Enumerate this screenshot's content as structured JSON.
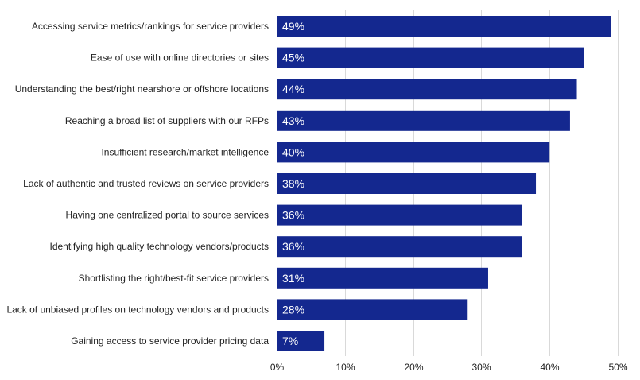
{
  "chart_data": {
    "type": "bar",
    "orientation": "horizontal",
    "title": "",
    "xlabel": "",
    "ylabel": "",
    "categories": [
      "Accessing service metrics/rankings for service providers",
      "Ease of use with online directories or sites",
      "Understanding the best/right nearshore or offshore locations",
      "Reaching a broad list of suppliers with our RFPs",
      "Insufficient research/market intelligence",
      "Lack of authentic and trusted reviews on service providers",
      "Having one centralized portal to source services",
      "Identifying high quality technology vendors/products",
      "Shortlisting the right/best-fit service providers",
      "Lack of unbiased profiles on technology vendors and products",
      "Gaining access to service provider pricing data"
    ],
    "values": [
      49,
      45,
      44,
      43,
      40,
      38,
      36,
      36,
      31,
      28,
      7
    ],
    "value_labels": [
      "49%",
      "45%",
      "44%",
      "43%",
      "40%",
      "38%",
      "36%",
      "36%",
      "31%",
      "28%",
      "7%"
    ],
    "xlim": [
      0,
      50
    ],
    "x_ticks": [
      0,
      10,
      20,
      30,
      40,
      50
    ],
    "x_tick_labels": [
      "0%",
      "10%",
      "20%",
      "30%",
      "40%",
      "50%"
    ],
    "grid": true,
    "legend": "none",
    "colors": {
      "bar": "#14288f",
      "grid": "#d9d9d9"
    }
  }
}
